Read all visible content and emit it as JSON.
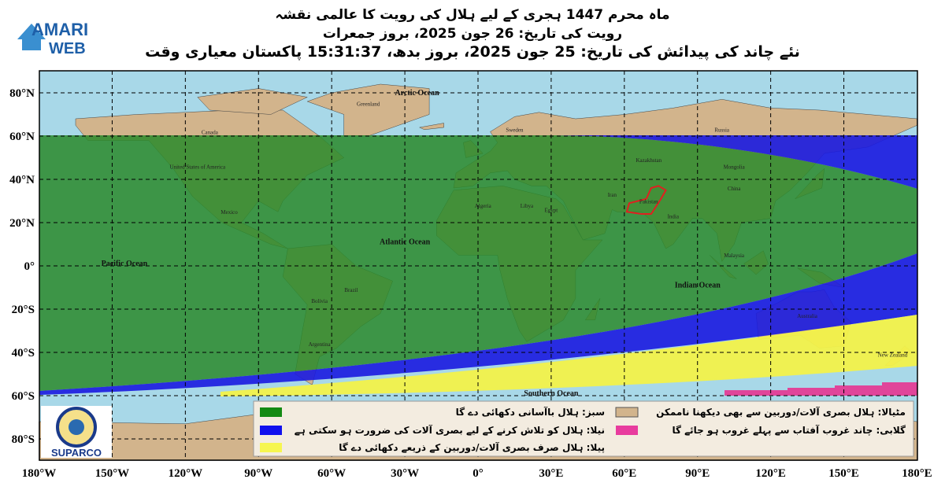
{
  "header": {
    "title_lines": [
      "ماہ محرم 1447 ہجری کے لیے ہلال کی رویت کا عالمی نقشہ",
      "رویت کی تاریخ:  26 جون 2025، بروز جمعرات",
      "نئے چاند کی پیدائش کی تاریخ: 25 جون 2025، بروز بدھ، 15:31:37 پاکستان معیاری وقت"
    ]
  },
  "logos": {
    "top": [
      "AMARI",
      "WEB"
    ],
    "bottom": "SUPARCO"
  },
  "map": {
    "lat_labels": [
      "80°N",
      "60°N",
      "40°N",
      "20°N",
      "0°",
      "20°S",
      "40°S",
      "60°S",
      "80°S"
    ],
    "lon_labels": [
      "180°W",
      "150°W",
      "120°W",
      "90°W",
      "60°W",
      "30°W",
      "0°",
      "30°E",
      "60°E",
      "90°E",
      "120°E",
      "150°E",
      "180°E"
    ],
    "places": [
      "Arctic Ocean",
      "Atlantic Ocean",
      "Pacific Ocean",
      "Indian Ocean",
      "Southern Ocean",
      "Greenland",
      "Canada",
      "United States of America",
      "Mexico",
      "Brazil",
      "Bolivia",
      "Argentina",
      "Russia",
      "Kazakhstan",
      "Mongolia",
      "China",
      "Iran",
      "Pakistan",
      "India",
      "Libya",
      "Egypt",
      "Algeria",
      "Australia",
      "New Zealand",
      "Sweden",
      "Malaysia"
    ]
  },
  "legend": {
    "items": [
      "سبز: ہلال باآسانی دکھائی دے گا",
      "نیلا: ہلال کو تلاش کرنے کے لیے بصری آلات کی ضرورت ہو سکتی ہے",
      "پیلا: ہلال صرف بصری آلات/دوربین کے ذریعے دکھائی دے گا",
      "مٹیالا: ہلال بصری آلات/دوربین سے بھی دیکھنا ناممکن",
      "گلابی: چاند غروب آفتاب سے پہلے غروب ہو جائے گا"
    ]
  }
}
